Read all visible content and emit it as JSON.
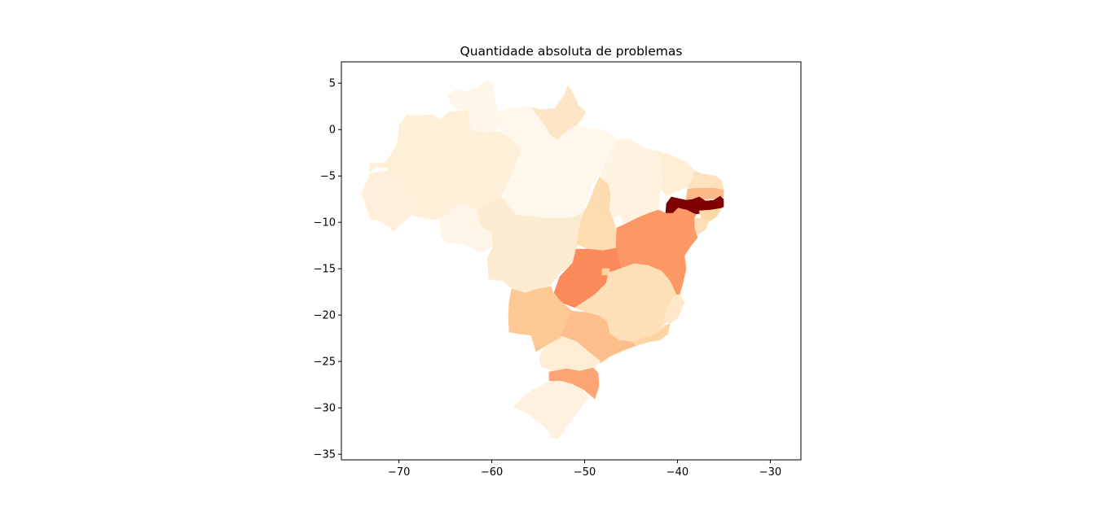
{
  "chart_data": {
    "type": "choropleth",
    "title": "Quantidade absoluta de problemas",
    "xlabel": "",
    "ylabel": "",
    "xlim": [
      -76.2,
      -26.7
    ],
    "ylim": [
      -35.6,
      7.3
    ],
    "x_ticks": [
      -70,
      -60,
      -50,
      -40,
      -30
    ],
    "y_ticks": [
      5,
      0,
      -5,
      -10,
      -15,
      -20,
      -25,
      -30,
      -35
    ],
    "x_tick_labels": [
      "−70",
      "−60",
      "−50",
      "−40",
      "−30"
    ],
    "y_tick_labels": [
      "5",
      "0",
      "−5",
      "−10",
      "−15",
      "−20",
      "−25",
      "−30",
      "−35"
    ],
    "colormap": "OrRd",
    "grid": false,
    "regions": [
      {
        "id": "AC",
        "color": "#fef0da"
      },
      {
        "id": "AM",
        "color": "#feefd8"
      },
      {
        "id": "RR",
        "color": "#fff5e9"
      },
      {
        "id": "AP",
        "color": "#fde5c5"
      },
      {
        "id": "PA",
        "color": "#fff6ec"
      },
      {
        "id": "RO",
        "color": "#fff4e8"
      },
      {
        "id": "MT",
        "color": "#fdebd1"
      },
      {
        "id": "TO",
        "color": "#fddcaf"
      },
      {
        "id": "MA",
        "color": "#fff3e3"
      },
      {
        "id": "PI",
        "color": "#fff2e1"
      },
      {
        "id": "CE",
        "color": "#feeed5"
      },
      {
        "id": "RN",
        "color": "#fde2bd"
      },
      {
        "id": "PB",
        "color": "#fdba86"
      },
      {
        "id": "PE",
        "color": "#7f0000"
      },
      {
        "id": "AL",
        "color": "#fdd7a6"
      },
      {
        "id": "SE",
        "color": "#fedfb8"
      },
      {
        "id": "BA",
        "color": "#fc9865"
      },
      {
        "id": "GO",
        "color": "#fc8a5a"
      },
      {
        "id": "DF",
        "color": "#fdd49e"
      },
      {
        "id": "MS",
        "color": "#fdc894"
      },
      {
        "id": "MG",
        "color": "#fde0b8"
      },
      {
        "id": "ES",
        "color": "#fee8c9"
      },
      {
        "id": "RJ",
        "color": "#fdd5a4"
      },
      {
        "id": "SP",
        "color": "#fdbe8b"
      },
      {
        "id": "PR",
        "color": "#feedd3"
      },
      {
        "id": "SC",
        "color": "#fca474"
      },
      {
        "id": "RS",
        "color": "#fef1df"
      }
    ]
  }
}
